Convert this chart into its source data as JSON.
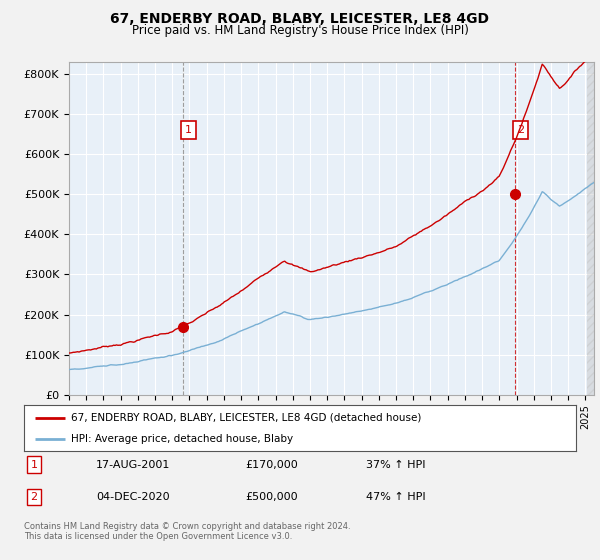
{
  "title": "67, ENDERBY ROAD, BLABY, LEICESTER, LE8 4GD",
  "subtitle": "Price paid vs. HM Land Registry's House Price Index (HPI)",
  "ylabel_ticks": [
    "£0",
    "£100K",
    "£200K",
    "£300K",
    "£400K",
    "£500K",
    "£600K",
    "£700K",
    "£800K"
  ],
  "ytick_values": [
    0,
    100000,
    200000,
    300000,
    400000,
    500000,
    600000,
    700000,
    800000
  ],
  "ylim": [
    0,
    830000
  ],
  "xlim_start": 1995.0,
  "xlim_end": 2025.5,
  "red_color": "#cc0000",
  "blue_color": "#7ab0d4",
  "plot_bg_color": "#e8f0f8",
  "background_color": "#f2f2f2",
  "marker1_year": 2001.63,
  "marker1_price": 170000,
  "marker1_label": "1",
  "marker2_year": 2020.92,
  "marker2_price": 500000,
  "marker2_label": "2",
  "legend_line1": "67, ENDERBY ROAD, BLABY, LEICESTER, LE8 4GD (detached house)",
  "legend_line2": "HPI: Average price, detached house, Blaby",
  "table_row1": [
    "1",
    "17-AUG-2001",
    "£170,000",
    "37% ↑ HPI"
  ],
  "table_row2": [
    "2",
    "04-DEC-2020",
    "£500,000",
    "47% ↑ HPI"
  ],
  "footnote1": "Contains HM Land Registry data © Crown copyright and database right 2024.",
  "footnote2": "This data is licensed under the Open Government Licence v3.0."
}
